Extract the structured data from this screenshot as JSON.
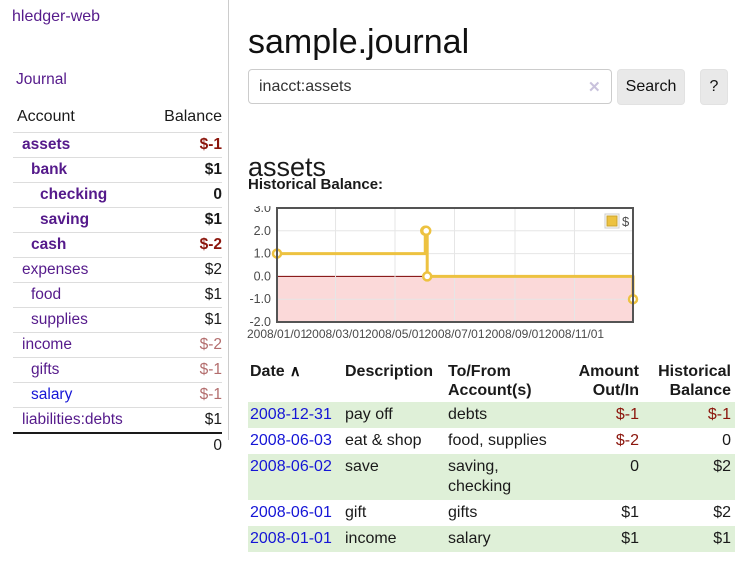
{
  "colors": {
    "link_purple": "#551a8b",
    "link_blue": "#1515d6",
    "negative_dark_red": "#8b150c",
    "negative_rose": "#b36d6d",
    "row_stripe_green": "#dff0d8",
    "series_gold": "#edc240",
    "negative_region_pink": "#fbd9d9",
    "zero_line_dark_red": "#7a0000",
    "grid_line": "#e6e6e6",
    "plot_border": "#545454"
  },
  "sidebar": {
    "brand": "hledger-web",
    "journal_label": "Journal",
    "table": {
      "account_header": "Account",
      "balance_header": "Balance",
      "rows": [
        {
          "account": "assets",
          "indent": 1,
          "bold": true,
          "balance": "$-1",
          "balance_color": "neg-dark",
          "link": "purple"
        },
        {
          "account": "bank",
          "indent": 2,
          "bold": true,
          "balance": "$1",
          "balance_color": "pos",
          "link": "purple"
        },
        {
          "account": "checking",
          "indent": 3,
          "bold": true,
          "balance": "0",
          "balance_color": "pos",
          "link": "purple"
        },
        {
          "account": "saving",
          "indent": 3,
          "bold": true,
          "balance": "$1",
          "balance_color": "pos",
          "link": "purple"
        },
        {
          "account": "cash",
          "indent": 2,
          "bold": true,
          "balance": "$-2",
          "balance_color": "neg-dark",
          "link": "purple"
        },
        {
          "account": "expenses",
          "indent": 1,
          "bold": false,
          "balance": "$2",
          "balance_color": "pos",
          "link": "purple"
        },
        {
          "account": "food",
          "indent": 2,
          "bold": false,
          "balance": "$1",
          "balance_color": "pos",
          "link": "purple"
        },
        {
          "account": "supplies",
          "indent": 2,
          "bold": false,
          "balance": "$1",
          "balance_color": "pos",
          "link": "purple"
        },
        {
          "account": "income",
          "indent": 1,
          "bold": false,
          "balance": "$-2",
          "balance_color": "neg-rose",
          "link": "purple"
        },
        {
          "account": "gifts",
          "indent": 2,
          "bold": false,
          "balance": "$-1",
          "balance_color": "neg-rose",
          "link": "purple"
        },
        {
          "account": "salary",
          "indent": 2,
          "bold": false,
          "balance": "$-1",
          "balance_color": "neg-rose",
          "link": "blue"
        },
        {
          "account": "liabilities:debts",
          "indent": 1,
          "bold": false,
          "balance": "$1",
          "balance_color": "pos",
          "link": "purple"
        }
      ],
      "total": "0"
    }
  },
  "header": {
    "title": "sample.journal"
  },
  "search": {
    "query": "inacct:assets",
    "clear_icon": "✕",
    "search_label": "Search",
    "help_label": "?"
  },
  "account_page": {
    "heading": "assets",
    "chart_title": "Historical Balance:"
  },
  "chart_data": {
    "type": "line",
    "step": true,
    "title": "Historical Balance:",
    "series": [
      {
        "name": "$",
        "color": "#edc240",
        "points": [
          [
            "2008-01-01",
            1
          ],
          [
            "2008-06-01",
            2
          ],
          [
            "2008-06-02",
            2
          ],
          [
            "2008-06-03",
            0
          ],
          [
            "2008-12-31",
            -1
          ]
        ]
      }
    ],
    "x_range": [
      "2008-01-01",
      "2008-12-31"
    ],
    "ylim": [
      -2,
      3
    ],
    "y_ticks": [
      3,
      2,
      1,
      0,
      -1,
      -2
    ],
    "y_tick_labels": [
      "3.0",
      "2.0",
      "1.0",
      "0.0",
      "-1.0",
      "-2.0"
    ],
    "x_ticks": [
      "2008-01-01",
      "2008-03-01",
      "2008-05-01",
      "2008-07-01",
      "2008-09-01",
      "2008-11-01"
    ],
    "x_tick_labels": [
      "2008/01/01",
      "2008/03/01",
      "2008/05/01",
      "2008/07/01",
      "2008/09/01",
      "2008/11/01"
    ],
    "legend": {
      "label": "$",
      "position": "top-right"
    },
    "grid": true,
    "negative_region": true
  },
  "register": {
    "sort_icon": "∧",
    "columns": [
      {
        "label": "Date",
        "sorted": "asc"
      },
      {
        "label": "Description"
      },
      {
        "label": "To/From\nAccount(s)"
      },
      {
        "label": "Amount\nOut/In",
        "align": "right"
      },
      {
        "label": "Historical\nBalance",
        "align": "right"
      }
    ],
    "rows": [
      {
        "date": "2008-12-31",
        "description": "pay off",
        "accounts": "debts",
        "amount": "$-1",
        "balance": "$-1"
      },
      {
        "date": "2008-06-03",
        "description": "eat & shop",
        "accounts": "food, supplies",
        "amount": "$-2",
        "balance": "0"
      },
      {
        "date": "2008-06-02",
        "description": "save",
        "accounts": "saving, checking",
        "amount": "0",
        "balance": "$2"
      },
      {
        "date": "2008-06-01",
        "description": "gift",
        "accounts": "gifts",
        "amount": "$1",
        "balance": "$2"
      },
      {
        "date": "2008-01-01",
        "description": "income",
        "accounts": "salary",
        "amount": "$1",
        "balance": "$1"
      }
    ]
  }
}
